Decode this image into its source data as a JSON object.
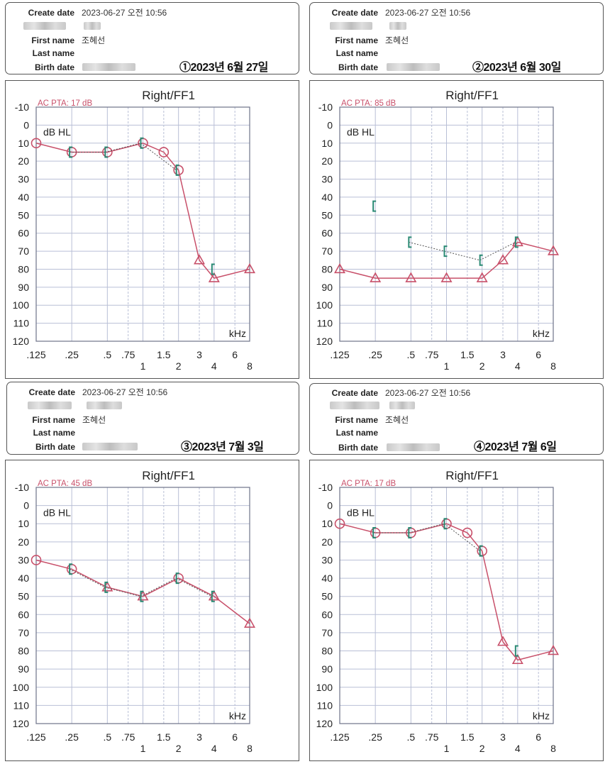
{
  "info_labels": {
    "create": "Create date",
    "first": "First name",
    "last": "Last name",
    "birth": "Birth date"
  },
  "panels": [
    {
      "create_date": "2023-06-27 오전 10:56",
      "first_name": "조혜선",
      "last_name": "",
      "date_label": "①2023년 6월 27일"
    },
    {
      "create_date": "2023-06-27 오전 10:56",
      "first_name": "조혜선",
      "last_name": "",
      "date_label": "②2023년 6월 30일"
    },
    {
      "create_date": "2023-06-27 오전 10:56",
      "first_name": "조혜선",
      "last_name": "",
      "date_label": "③2023년 7월 3일"
    },
    {
      "create_date": "2023-06-27 오전 10:56",
      "first_name": "조혜선",
      "last_name": "",
      "date_label": "④2023년 7월 6일"
    }
  ],
  "colors": {
    "ac": "#c8506a",
    "bc": "#2a8a74",
    "grid": "#b9bfd6",
    "text": "#222222"
  },
  "chart_data": [
    {
      "type": "line",
      "title": "Right/FF1",
      "pta": "AC PTA: 17 dB",
      "ylabel": "dB HL",
      "xlabel": "kHz",
      "ylim": [
        -10,
        120
      ],
      "yticks": [
        "-10",
        "0",
        "10",
        "20",
        "30",
        "40",
        "50",
        "60",
        "70",
        "80",
        "90",
        "100",
        "110",
        "120"
      ],
      "x_labels": [
        ".125",
        ".25",
        ".5",
        ".75",
        "1",
        "1.5",
        "2",
        "3",
        "4",
        "6",
        "8"
      ],
      "series": [
        {
          "kind": "ac",
          "points": [
            {
              "f": 0.125,
              "db": 10,
              "m": "O"
            },
            {
              "f": 0.25,
              "db": 15,
              "m": "O"
            },
            {
              "f": 0.5,
              "db": 15,
              "m": "O"
            },
            {
              "f": 1,
              "db": 10,
              "m": "O"
            },
            {
              "f": 1.5,
              "db": 15,
              "m": "O"
            },
            {
              "f": 2,
              "db": 25,
              "m": "O"
            },
            {
              "f": 3,
              "db": 75,
              "m": "T"
            },
            {
              "f": 4,
              "db": 85,
              "m": "T"
            },
            {
              "f": 8,
              "db": 80,
              "m": "T"
            }
          ]
        },
        {
          "kind": "bc",
          "points": [
            {
              "f": 0.25,
              "db": 15
            },
            {
              "f": 0.5,
              "db": 15
            },
            {
              "f": 1,
              "db": 10
            },
            {
              "f": 2,
              "db": 25
            },
            {
              "f": 4,
              "db": 80
            }
          ]
        }
      ]
    },
    {
      "type": "line",
      "title": "Right/FF1",
      "pta": "AC PTA: 85 dB",
      "ylabel": "dB HL",
      "xlabel": "kHz",
      "ylim": [
        -10,
        120
      ],
      "yticks": [
        "-10",
        "0",
        "10",
        "20",
        "30",
        "40",
        "50",
        "60",
        "70",
        "80",
        "90",
        "100",
        "110",
        "120"
      ],
      "x_labels": [
        ".125",
        ".25",
        ".5",
        ".75",
        "1",
        "1.5",
        "2",
        "3",
        "4",
        "6",
        "8"
      ],
      "series": [
        {
          "kind": "ac",
          "points": [
            {
              "f": 0.125,
              "db": 80,
              "m": "T"
            },
            {
              "f": 0.25,
              "db": 85,
              "m": "T"
            },
            {
              "f": 0.5,
              "db": 85,
              "m": "T"
            },
            {
              "f": 1,
              "db": 85,
              "m": "T"
            },
            {
              "f": 2,
              "db": 85,
              "m": "T"
            },
            {
              "f": 3,
              "db": 75,
              "m": "T"
            },
            {
              "f": 4,
              "db": 65,
              "m": "T"
            },
            {
              "f": 8,
              "db": 70,
              "m": "T"
            }
          ]
        },
        {
          "kind": "bc",
          "points": [
            {
              "f": 0.25,
              "db": 45
            },
            {
              "f": 0.5,
              "db": 65
            },
            {
              "f": 1,
              "db": 70
            },
            {
              "f": 2,
              "db": 75
            },
            {
              "f": 4,
              "db": 65
            }
          ]
        }
      ]
    },
    {
      "type": "line",
      "title": "Right/FF1",
      "pta": "AC PTA: 45 dB",
      "ylabel": "dB HL",
      "xlabel": "kHz",
      "ylim": [
        -10,
        120
      ],
      "yticks": [
        "-10",
        "0",
        "10",
        "20",
        "30",
        "40",
        "50",
        "60",
        "70",
        "80",
        "90",
        "100",
        "110",
        "120"
      ],
      "x_labels": [
        ".125",
        ".25",
        ".5",
        ".75",
        "1",
        "1.5",
        "2",
        "3",
        "4",
        "6",
        "8"
      ],
      "series": [
        {
          "kind": "ac",
          "points": [
            {
              "f": 0.125,
              "db": 30,
              "m": "O"
            },
            {
              "f": 0.25,
              "db": 35,
              "m": "O"
            },
            {
              "f": 0.5,
              "db": 45,
              "m": "T"
            },
            {
              "f": 1,
              "db": 50,
              "m": "T"
            },
            {
              "f": 2,
              "db": 40,
              "m": "O"
            },
            {
              "f": 4,
              "db": 50,
              "m": "T"
            },
            {
              "f": 8,
              "db": 65,
              "m": "T"
            }
          ]
        },
        {
          "kind": "bc",
          "points": [
            {
              "f": 0.25,
              "db": 35
            },
            {
              "f": 0.5,
              "db": 45
            },
            {
              "f": 1,
              "db": 50
            },
            {
              "f": 2,
              "db": 40
            },
            {
              "f": 4,
              "db": 50
            }
          ]
        }
      ]
    },
    {
      "type": "line",
      "title": "Right/FF1",
      "pta": "AC PTA: 17 dB",
      "ylabel": "dB HL",
      "xlabel": "kHz",
      "ylim": [
        -10,
        120
      ],
      "yticks": [
        "-10",
        "0",
        "10",
        "20",
        "30",
        "40",
        "50",
        "60",
        "70",
        "80",
        "90",
        "100",
        "110",
        "120"
      ],
      "x_labels": [
        ".125",
        ".25",
        ".5",
        ".75",
        "1",
        "1.5",
        "2",
        "3",
        "4",
        "6",
        "8"
      ],
      "series": [
        {
          "kind": "ac",
          "points": [
            {
              "f": 0.125,
              "db": 10,
              "m": "O"
            },
            {
              "f": 0.25,
              "db": 15,
              "m": "O"
            },
            {
              "f": 0.5,
              "db": 15,
              "m": "O"
            },
            {
              "f": 1,
              "db": 10,
              "m": "O"
            },
            {
              "f": 1.5,
              "db": 15,
              "m": "O"
            },
            {
              "f": 2,
              "db": 25,
              "m": "O"
            },
            {
              "f": 3,
              "db": 75,
              "m": "T"
            },
            {
              "f": 4,
              "db": 85,
              "m": "T"
            },
            {
              "f": 8,
              "db": 80,
              "m": "T"
            }
          ]
        },
        {
          "kind": "bc",
          "points": [
            {
              "f": 0.25,
              "db": 15
            },
            {
              "f": 0.5,
              "db": 15
            },
            {
              "f": 1,
              "db": 10
            },
            {
              "f": 2,
              "db": 25
            },
            {
              "f": 4,
              "db": 80
            }
          ]
        }
      ]
    }
  ]
}
